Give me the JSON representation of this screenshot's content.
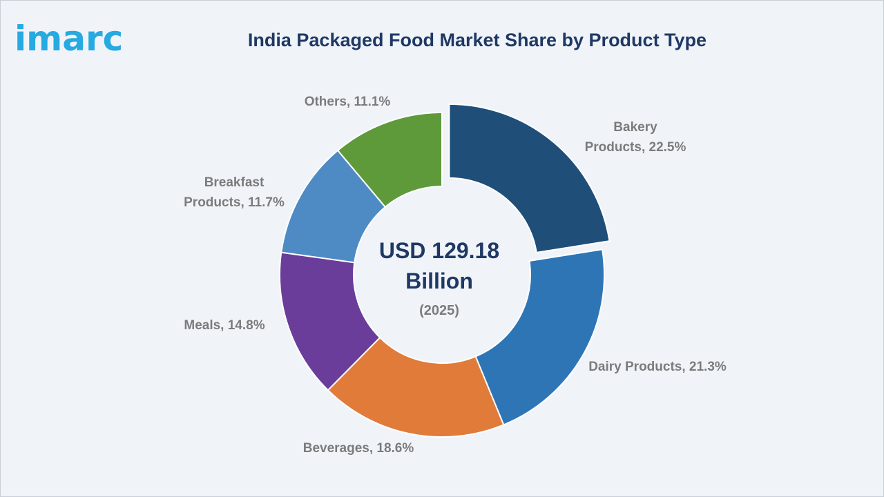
{
  "brand": {
    "logo_text": "imarc",
    "logo_color": "#27a9e1"
  },
  "chart_data": {
    "type": "pie",
    "subtype": "donut",
    "title": "India Packaged Food Market Share by Product Type",
    "center": {
      "line1": "USD 129.18",
      "line2": "Billion",
      "line3": "(2025)"
    },
    "slices": [
      {
        "category": "Bakery Products",
        "value": 22.5,
        "label_lines": [
          "Bakery",
          "Products, 22.5%"
        ],
        "color": "#1f4e79",
        "exploded": true
      },
      {
        "category": "Dairy Products",
        "value": 21.3,
        "label_lines": [
          "Dairy Products, 21.3%"
        ],
        "color": "#2e75b6",
        "exploded": false
      },
      {
        "category": "Beverages",
        "value": 18.6,
        "label_lines": [
          "Beverages, 18.6%"
        ],
        "color": "#e07b39",
        "exploded": false
      },
      {
        "category": "Meals",
        "value": 14.8,
        "label_lines": [
          "Meals, 14.8%"
        ],
        "color": "#6a3d9a",
        "exploded": false
      },
      {
        "category": "Breakfast Products",
        "value": 11.7,
        "label_lines": [
          "Breakfast",
          "Products, 11.7%"
        ],
        "color": "#4e8bc4",
        "exploded": false
      },
      {
        "category": "Others",
        "value": 11.1,
        "label_lines": [
          "Others, 11.1%"
        ],
        "color": "#5e9a3a",
        "exploded": false
      }
    ],
    "legend": "none"
  }
}
